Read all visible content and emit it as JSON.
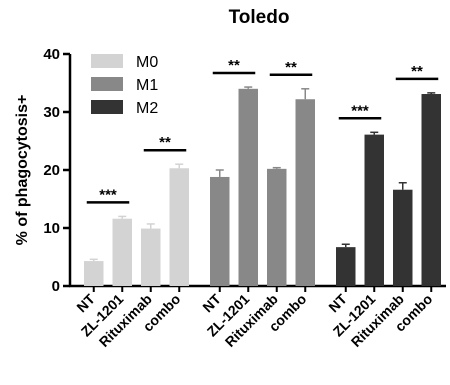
{
  "chart_data": {
    "type": "bar",
    "title": "Toledo",
    "ylabel": "% of phagocytosis+",
    "xlabel": "",
    "ylim": [
      0,
      40
    ],
    "yticks": [
      0,
      10,
      20,
      30,
      40
    ],
    "grid": false,
    "legend_placement": "top-left",
    "categories": [
      "NT",
      "ZL-1201",
      "Rituximab",
      "combo"
    ],
    "series": [
      {
        "name": "M0",
        "color": "#d3d3d3",
        "values": [
          4.3,
          11.6,
          9.9,
          20.3
        ],
        "errors": [
          0.3,
          0.4,
          0.8,
          0.7
        ]
      },
      {
        "name": "M1",
        "color": "#888888",
        "values": [
          18.8,
          34.0,
          20.2,
          32.2
        ],
        "errors": [
          1.2,
          0.3,
          0.2,
          1.8
        ]
      },
      {
        "name": "M2",
        "color": "#333333",
        "values": [
          6.7,
          26.1,
          16.6,
          33.1
        ],
        "errors": [
          0.5,
          0.4,
          1.2,
          0.2
        ]
      }
    ],
    "significance": [
      {
        "series": "M0",
        "pair": [
          "NT",
          "ZL-1201"
        ],
        "label": "***"
      },
      {
        "series": "M0",
        "pair": [
          "Rituximab",
          "combo"
        ],
        "label": "**"
      },
      {
        "series": "M1",
        "pair": [
          "NT",
          "ZL-1201"
        ],
        "label": "**"
      },
      {
        "series": "M1",
        "pair": [
          "Rituximab",
          "combo"
        ],
        "label": "**"
      },
      {
        "series": "M2",
        "pair": [
          "NT",
          "ZL-1201"
        ],
        "label": "***"
      },
      {
        "series": "M2",
        "pair": [
          "Rituximab",
          "combo"
        ],
        "label": "**"
      }
    ]
  }
}
